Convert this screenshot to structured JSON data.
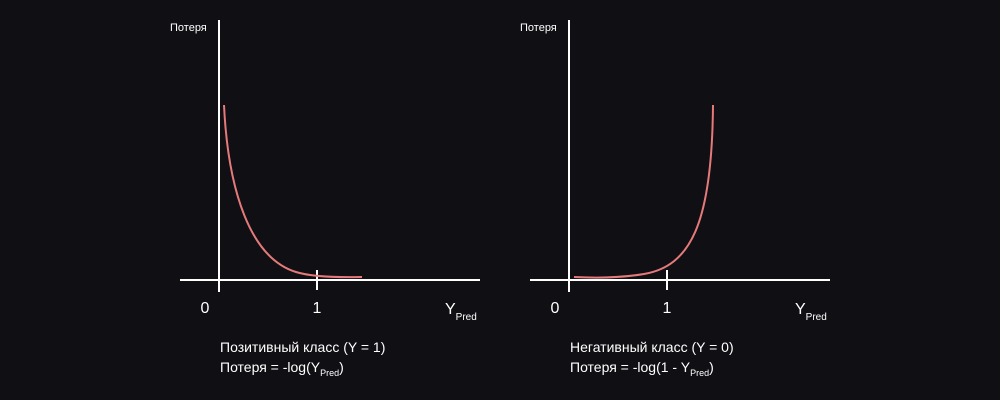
{
  "panels": [
    {
      "y_label": "Потеря",
      "origin_label": "0",
      "tick_label": "1",
      "x_label": {
        "main": "Y",
        "sub": "Pred"
      },
      "caption": {
        "class_line": "Позитивный класс (Y = 1)",
        "formula": {
          "before": "Потеря = -log(Y",
          "sub": "Pred",
          "after": ")"
        }
      }
    },
    {
      "y_label": "Потеря",
      "origin_label": "0",
      "tick_label": "1",
      "x_label": {
        "main": "Y",
        "sub": "Pred"
      },
      "caption": {
        "class_line": "Негативный класс (Y = 0)",
        "formula": {
          "before": "Потеря = -log(1 - Y",
          "sub": "Pred",
          "after": ")"
        }
      }
    }
  ]
}
